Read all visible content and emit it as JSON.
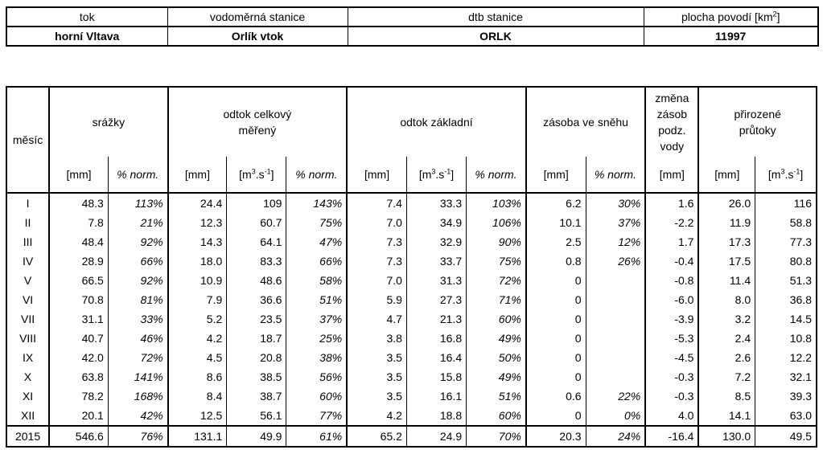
{
  "info": {
    "headers": {
      "tok": "tok",
      "stanice": "vodoměrná stanice",
      "dtb": "dtb stanice",
      "plocha": "plocha povodí [km",
      "plocha_sup": "2",
      "plocha_end": "]"
    },
    "values": {
      "tok": "horní Vltava",
      "stanice": "Orlík vtok",
      "dtb": "ORLK",
      "plocha": "11997"
    }
  },
  "table": {
    "groups": {
      "mesic": "měsíc",
      "srazky": "srážky",
      "odtok_celkovy_1": "odtok celkový",
      "odtok_celkovy_2": "měřený",
      "odtok_zakladni": "odtok základní",
      "zasoba": "zásoba ve sněhu",
      "zmena_1": "změna",
      "zmena_2": "zásob",
      "zmena_3": "podz.",
      "zmena_4": "vody",
      "prutoky_1": "přirozené",
      "prutoky_2": "průtoky"
    },
    "units": {
      "mm": "[mm]",
      "norm": "% norm.",
      "m3s_a": "[m",
      "m3s_sup1": "3",
      "m3s_b": ".s",
      "m3s_sup2": "-1",
      "m3s_c": "]"
    },
    "rows": [
      {
        "m": "I",
        "c": [
          "48.3",
          "113%",
          "24.4",
          "109",
          "143%",
          "7.4",
          "33.3",
          "103%",
          "6.2",
          "30%",
          "1.6",
          "26.0",
          "116"
        ]
      },
      {
        "m": "II",
        "c": [
          "7.8",
          "21%",
          "12.3",
          "60.7",
          "75%",
          "7.0",
          "34.9",
          "106%",
          "10.1",
          "37%",
          "-2.2",
          "11.9",
          "58.8"
        ]
      },
      {
        "m": "III",
        "c": [
          "48.4",
          "92%",
          "14.3",
          "64.1",
          "47%",
          "7.3",
          "32.9",
          "90%",
          "2.5",
          "12%",
          "1.7",
          "17.3",
          "77.3"
        ]
      },
      {
        "m": "IV",
        "c": [
          "28.9",
          "66%",
          "18.0",
          "83.3",
          "66%",
          "7.3",
          "33.7",
          "75%",
          "0.8",
          "26%",
          "-0.4",
          "17.5",
          "80.8"
        ]
      },
      {
        "m": "V",
        "c": [
          "66.5",
          "92%",
          "10.9",
          "48.6",
          "58%",
          "7.0",
          "31.3",
          "72%",
          "0",
          "",
          "-0.8",
          "11.4",
          "51.3"
        ]
      },
      {
        "m": "VI",
        "c": [
          "70.8",
          "81%",
          "7.9",
          "36.6",
          "51%",
          "5.9",
          "27.3",
          "71%",
          "0",
          "",
          "-6.0",
          "8.0",
          "36.8"
        ]
      },
      {
        "m": "VII",
        "c": [
          "31.1",
          "33%",
          "5.2",
          "23.5",
          "37%",
          "4.7",
          "21.3",
          "60%",
          "0",
          "",
          "-3.9",
          "3.2",
          "14.5"
        ]
      },
      {
        "m": "VIII",
        "c": [
          "40.7",
          "46%",
          "4.2",
          "18.7",
          "25%",
          "3.8",
          "16.8",
          "49%",
          "0",
          "",
          "-5.3",
          "2.4",
          "10.8"
        ]
      },
      {
        "m": "IX",
        "c": [
          "42.0",
          "72%",
          "4.5",
          "20.8",
          "38%",
          "3.5",
          "16.4",
          "50%",
          "0",
          "",
          "-4.5",
          "2.6",
          "12.2"
        ]
      },
      {
        "m": "X",
        "c": [
          "63.8",
          "141%",
          "8.6",
          "38.5",
          "56%",
          "3.5",
          "15.8",
          "49%",
          "0",
          "",
          "-0.3",
          "7.2",
          "32.1"
        ]
      },
      {
        "m": "XI",
        "c": [
          "78.2",
          "168%",
          "8.4",
          "38.7",
          "60%",
          "3.5",
          "16.1",
          "51%",
          "0.6",
          "22%",
          "-0.3",
          "8.5",
          "39.3"
        ]
      },
      {
        "m": "XII",
        "c": [
          "20.1",
          "42%",
          "12.5",
          "56.1",
          "77%",
          "4.2",
          "18.8",
          "60%",
          "0",
          "0%",
          "4.0",
          "14.1",
          "63.0"
        ]
      }
    ],
    "total": {
      "m": "2015",
      "c": [
        "546.6",
        "76%",
        "131.1",
        "49.9",
        "61%",
        "65.2",
        "24.9",
        "70%",
        "20.3",
        "24%",
        "-16.4",
        "130.0",
        "49.5"
      ]
    }
  }
}
